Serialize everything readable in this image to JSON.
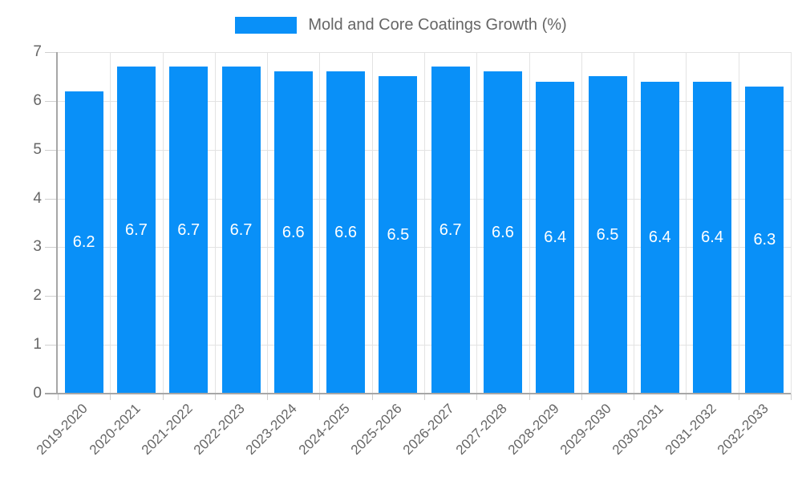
{
  "legend": {
    "label": "Mold and Core Coatings Growth (%)"
  },
  "chart_data": {
    "type": "bar",
    "title": "Mold and Core Coatings Growth (%)",
    "categories": [
      "2019-2020",
      "2020-2021",
      "2021-2022",
      "2022-2023",
      "2023-2024",
      "2024-2025",
      "2025-2026",
      "2026-2027",
      "2027-2028",
      "2028-2029",
      "2029-2030",
      "2030-2031",
      "2031-2032",
      "2032-2033"
    ],
    "values": [
      6.2,
      6.7,
      6.7,
      6.7,
      6.6,
      6.6,
      6.5,
      6.7,
      6.6,
      6.4,
      6.5,
      6.4,
      6.4,
      6.3
    ],
    "value_labels": [
      "6.2",
      "6.7",
      "6.7",
      "6.7",
      "6.6",
      "6.6",
      "6.5",
      "6.7",
      "6.6",
      "6.4",
      "6.5",
      "6.4",
      "6.4",
      "6.3"
    ],
    "xlabel": "",
    "ylabel": "",
    "ylim": [
      0,
      7
    ],
    "yticks": [
      "0",
      "1",
      "2",
      "3",
      "4",
      "5",
      "6",
      "7"
    ],
    "grid": true,
    "legend_position": "top",
    "value_label_position": "inside-center"
  },
  "colors": {
    "bar": "#0990f8",
    "grid": "#e3e3e3",
    "tick": "#cfcfcf",
    "axis": "#a6a6a6",
    "label_text": "#666666",
    "value_text": "#ffffff"
  }
}
